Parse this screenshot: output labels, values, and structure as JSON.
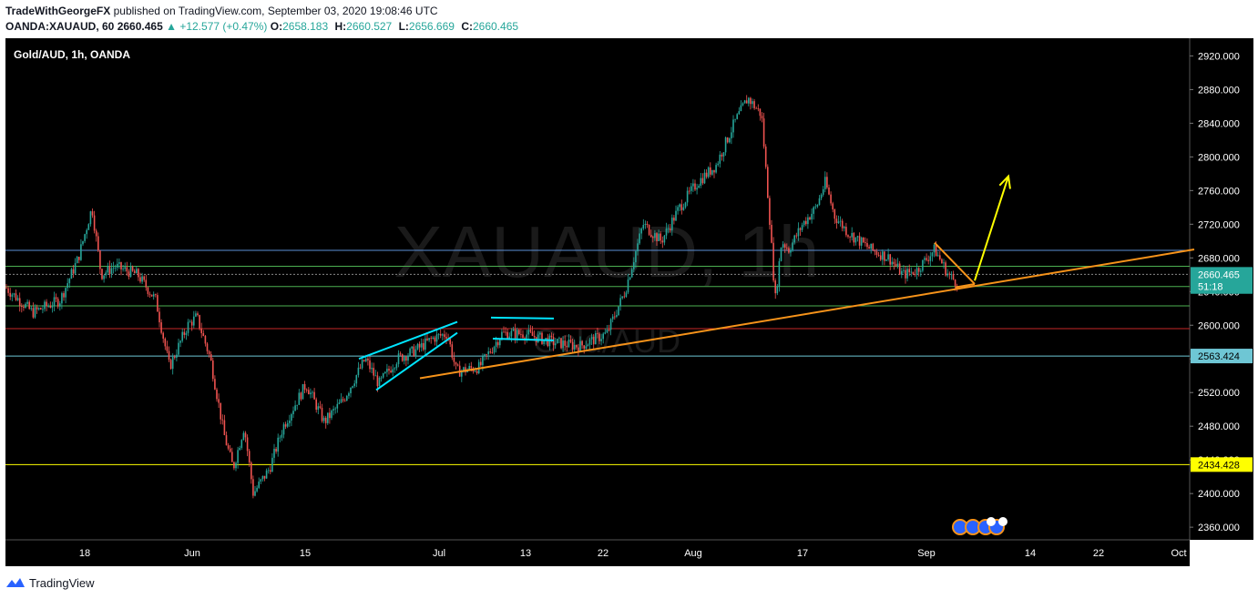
{
  "header": {
    "author": "TradeWithGeorgeFX",
    "published_text": "published on TradingView.com, September 03, 2020 19:08:46 UTC",
    "symbol": "OANDA:XAUAUD, 60",
    "last": "2660.465",
    "change": "+12.577 (+0.47%)",
    "open_label": "O:",
    "open": "2658.183",
    "high_label": "H:",
    "high": "2660.527",
    "low_label": "L:",
    "low": "2656.669",
    "close_label": "C:",
    "close": "2660.465"
  },
  "legend": "Gold/AUD, 1h, OANDA",
  "watermark": {
    "symbol": "XAUAUD, 1h",
    "name": "Gold/AUD"
  },
  "footer": {
    "brand": "TradingView"
  },
  "colors": {
    "background": "#000000",
    "up": "#26a69a",
    "down": "#ef5350",
    "trendline": "#f7931a",
    "pattern": "#00e5ff",
    "arrow": "#ffff00",
    "axis_text": "#ffffff"
  },
  "chart_data": {
    "type": "candlestick",
    "timeframe": "1h",
    "symbol": "XAUAUD",
    "x_ticks": [
      "18",
      "Jun",
      "15",
      "Jul",
      "13",
      "22",
      "Aug",
      "17",
      "Sep",
      "14",
      "22",
      "Oct"
    ],
    "y_ticks": [
      "2920.000",
      "2880.000",
      "2840.000",
      "2800.000",
      "2760.000",
      "2720.000",
      "2680.000",
      "2640.000",
      "2600.000",
      "2560.000",
      "2520.000",
      "2480.000",
      "2440.000",
      "2400.000",
      "2360.000"
    ],
    "y_range": [
      2345,
      2941
    ],
    "price_labels": [
      {
        "text": "2660.465",
        "value": 2660.465,
        "bg": "#26a69a",
        "fg": "#ffffff"
      },
      {
        "text": "51:18",
        "value": 2646,
        "bg": "#26a69a",
        "fg": "#ffffff"
      },
      {
        "text": "2563.424",
        "value": 2563.424,
        "bg": "#6ec6d4",
        "fg": "#000000"
      },
      {
        "text": "2434.428",
        "value": 2434.428,
        "bg": "#ffff00",
        "fg": "#000000"
      }
    ],
    "horizontal_levels": [
      {
        "value": 2689,
        "color": "#5b8fd6"
      },
      {
        "value": 2670,
        "color": "#4caf50"
      },
      {
        "value": 2646,
        "color": "#4caf50"
      },
      {
        "value": 2623,
        "color": "#4caf50"
      },
      {
        "value": 2596,
        "color": "#c62828"
      },
      {
        "value": 2563.424,
        "color": "#6ec6d4"
      },
      {
        "value": 2434.428,
        "color": "#ffff00"
      }
    ],
    "price_path": [
      [
        0,
        2645
      ],
      [
        30,
        2615
      ],
      [
        60,
        2630
      ],
      [
        80,
        2680
      ],
      [
        95,
        2740
      ],
      [
        105,
        2660
      ],
      [
        120,
        2670
      ],
      [
        145,
        2660
      ],
      [
        165,
        2630
      ],
      [
        180,
        2550
      ],
      [
        200,
        2600
      ],
      [
        210,
        2610
      ],
      [
        225,
        2560
      ],
      [
        240,
        2470
      ],
      [
        250,
        2430
      ],
      [
        262,
        2480
      ],
      [
        272,
        2400
      ],
      [
        290,
        2430
      ],
      [
        305,
        2480
      ],
      [
        330,
        2530
      ],
      [
        350,
        2485
      ],
      [
        370,
        2510
      ],
      [
        395,
        2560
      ],
      [
        410,
        2530
      ],
      [
        430,
        2560
      ],
      [
        450,
        2570
      ],
      [
        470,
        2585
      ],
      [
        485,
        2590
      ],
      [
        495,
        2545
      ],
      [
        520,
        2550
      ],
      [
        545,
        2590
      ],
      [
        570,
        2590
      ],
      [
        600,
        2580
      ],
      [
        630,
        2575
      ],
      [
        660,
        2590
      ],
      [
        680,
        2640
      ],
      [
        700,
        2720
      ],
      [
        720,
        2700
      ],
      [
        740,
        2740
      ],
      [
        760,
        2770
      ],
      [
        780,
        2790
      ],
      [
        800,
        2840
      ],
      [
        815,
        2870
      ],
      [
        830,
        2850
      ],
      [
        838,
        2740
      ],
      [
        845,
        2630
      ],
      [
        852,
        2700
      ],
      [
        860,
        2690
      ],
      [
        875,
        2720
      ],
      [
        890,
        2740
      ],
      [
        900,
        2770
      ],
      [
        910,
        2730
      ],
      [
        925,
        2710
      ],
      [
        950,
        2690
      ],
      [
        970,
        2680
      ],
      [
        985,
        2660
      ],
      [
        1000,
        2665
      ],
      [
        1020,
        2690
      ],
      [
        1035,
        2660
      ],
      [
        1045,
        2650
      ]
    ],
    "annotations": {
      "trendline": [
        [
          455,
          2537
        ],
        [
          1305,
          2690
        ]
      ],
      "wedge_upper": [
        [
          388,
          2560
        ],
        [
          496,
          2604
        ]
      ],
      "wedge_lower": [
        [
          407,
          2523
        ],
        [
          496,
          2591
        ]
      ],
      "channel_top": [
        [
          533,
          2609
        ],
        [
          602,
          2608
        ]
      ],
      "channel_bottom": [
        [
          535,
          2584
        ],
        [
          602,
          2582
        ]
      ],
      "falling_wedge_upper": [
        [
          1020,
          2698
        ],
        [
          1064,
          2649
        ]
      ],
      "falling_wedge_lower": [
        [
          1043,
          2645
        ],
        [
          1064,
          2649
        ]
      ],
      "projection_arrow": [
        [
          1064,
          2653
        ],
        [
          1101,
          2777
        ]
      ]
    }
  }
}
